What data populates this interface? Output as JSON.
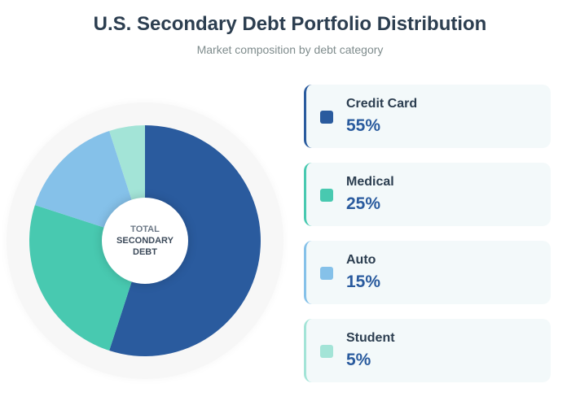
{
  "header": {
    "title": "U.S. Secondary Debt Portfolio Distribution",
    "subtitle": "Market composition by debt category"
  },
  "center_label": {
    "line1": "TOTAL",
    "line2": "SECONDARY",
    "line3": "DEBT"
  },
  "chart_data": {
    "type": "pie",
    "title": "U.S. Secondary Debt Portfolio Distribution",
    "subtitle": "Market composition by debt category",
    "categories": [
      "Credit Card",
      "Medical",
      "Auto",
      "Student"
    ],
    "values": [
      55,
      25,
      15,
      5
    ],
    "value_labels": [
      "55%",
      "25%",
      "15%",
      "5%"
    ],
    "colors": [
      "#2a5b9e",
      "#48c9b0",
      "#85c1e9",
      "#a3e4d7"
    ],
    "donut": true,
    "legend": "right"
  }
}
